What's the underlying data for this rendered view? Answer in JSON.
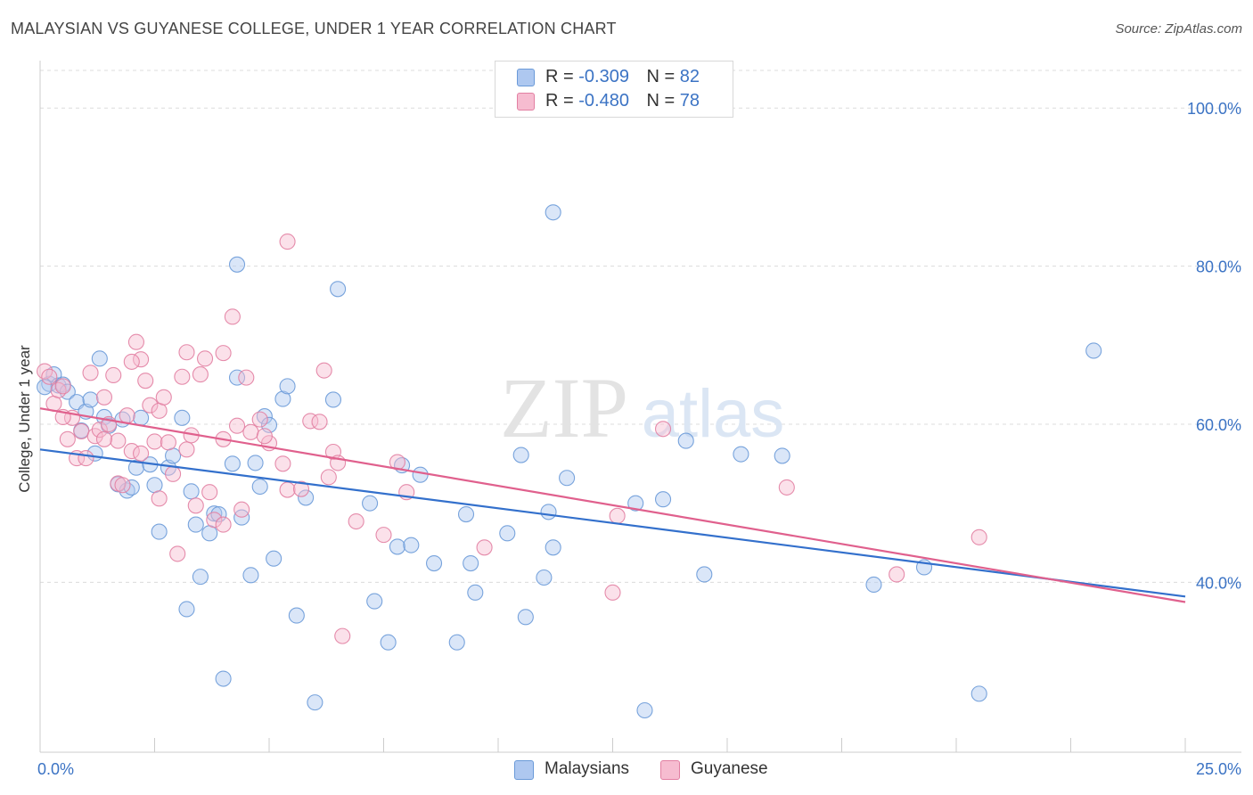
{
  "title": "MALAYSIAN VS GUYANESE COLLEGE, UNDER 1 YEAR CORRELATION CHART",
  "source": "Source: ZipAtlas.com",
  "watermark": {
    "zip": "ZIP",
    "atlas": "atlas"
  },
  "legend": {
    "r_label": "R =",
    "n_label": "N =",
    "series": [
      {
        "name": "Malaysians",
        "r": "-0.309",
        "n": "82",
        "fill": "#aec8f0",
        "stroke": "#6a9ad8"
      },
      {
        "name": "Guyanese",
        "r": "-0.480",
        "n": "78",
        "fill": "#f6bcd0",
        "stroke": "#e27fa2"
      }
    ]
  },
  "chart_data": {
    "type": "scatter",
    "title": "MALAYSIAN VS GUYANESE COLLEGE, UNDER 1 YEAR CORRELATION CHART",
    "xlabel": "",
    "ylabel": "College, Under 1 year",
    "xlim": [
      0,
      25
    ],
    "ylim": [
      18.5,
      106
    ],
    "x_tick_labels": [
      "0.0%",
      "25.0%"
    ],
    "y_ticks": [
      40,
      60,
      80,
      100
    ],
    "y_tick_labels": [
      "40.0%",
      "60.0%",
      "80.0%",
      "100.0%"
    ],
    "grid": true,
    "series": [
      {
        "name": "Malaysians",
        "color": "#6a9ad8",
        "fill": "#aec8f0",
        "trend": {
          "x": [
            0,
            25
          ],
          "y": [
            56.8,
            38.2
          ],
          "color": "#3370cc"
        },
        "points": [
          [
            0.2,
            65.1
          ],
          [
            0.3,
            66.3
          ],
          [
            0.4,
            64.9
          ],
          [
            0.5,
            65.0
          ],
          [
            0.6,
            64.1
          ],
          [
            0.8,
            62.8
          ],
          [
            0.9,
            59.2
          ],
          [
            1.0,
            61.6
          ],
          [
            1.1,
            63.1
          ],
          [
            1.2,
            56.3
          ],
          [
            1.3,
            68.3
          ],
          [
            1.4,
            60.9
          ],
          [
            1.5,
            59.8
          ],
          [
            1.7,
            52.4
          ],
          [
            1.8,
            60.6
          ],
          [
            1.9,
            51.6
          ],
          [
            2.0,
            52.0
          ],
          [
            2.1,
            54.5
          ],
          [
            2.2,
            60.8
          ],
          [
            2.4,
            54.9
          ],
          [
            2.5,
            52.3
          ],
          [
            2.6,
            46.4
          ],
          [
            2.8,
            54.5
          ],
          [
            2.9,
            56.0
          ],
          [
            3.1,
            60.8
          ],
          [
            3.2,
            36.6
          ],
          [
            3.3,
            51.5
          ],
          [
            3.4,
            47.3
          ],
          [
            3.5,
            40.7
          ],
          [
            3.7,
            46.2
          ],
          [
            3.8,
            48.7
          ],
          [
            3.9,
            48.6
          ],
          [
            4.0,
            27.8
          ],
          [
            4.2,
            55.0
          ],
          [
            4.3,
            80.2
          ],
          [
            4.3,
            65.9
          ],
          [
            4.4,
            48.2
          ],
          [
            4.6,
            40.9
          ],
          [
            4.7,
            55.1
          ],
          [
            4.8,
            52.1
          ],
          [
            4.9,
            61.0
          ],
          [
            5.0,
            59.9
          ],
          [
            5.1,
            43.0
          ],
          [
            5.3,
            63.2
          ],
          [
            5.4,
            64.8
          ],
          [
            5.6,
            35.8
          ],
          [
            5.8,
            50.7
          ],
          [
            6.0,
            24.8
          ],
          [
            6.4,
            63.1
          ],
          [
            6.5,
            77.1
          ],
          [
            7.2,
            50.0
          ],
          [
            7.3,
            37.6
          ],
          [
            7.6,
            32.4
          ],
          [
            7.8,
            44.5
          ],
          [
            7.9,
            54.8
          ],
          [
            8.1,
            44.7
          ],
          [
            8.3,
            53.6
          ],
          [
            8.6,
            42.4
          ],
          [
            9.1,
            32.4
          ],
          [
            9.4,
            42.4
          ],
          [
            9.3,
            48.6
          ],
          [
            9.5,
            38.7
          ],
          [
            10.2,
            46.2
          ],
          [
            10.5,
            56.1
          ],
          [
            10.6,
            35.6
          ],
          [
            11.0,
            40.6
          ],
          [
            11.1,
            48.9
          ],
          [
            11.2,
            44.4
          ],
          [
            11.2,
            86.8
          ],
          [
            11.5,
            53.2
          ],
          [
            13.0,
            50.0
          ],
          [
            13.2,
            23.8
          ],
          [
            13.6,
            50.5
          ],
          [
            14.1,
            57.9
          ],
          [
            14.5,
            41.0
          ],
          [
            15.3,
            56.2
          ],
          [
            16.2,
            56.0
          ],
          [
            18.2,
            39.7
          ],
          [
            19.3,
            41.9
          ],
          [
            20.5,
            25.9
          ],
          [
            23.0,
            69.3
          ],
          [
            0.1,
            64.7
          ]
        ]
      },
      {
        "name": "Guyanese",
        "color": "#e27fa2",
        "fill": "#f6bcd0",
        "trend": {
          "x": [
            0,
            25
          ],
          "y": [
            62.0,
            37.5
          ],
          "color": "#e0608d"
        },
        "points": [
          [
            0.1,
            66.7
          ],
          [
            0.2,
            66.0
          ],
          [
            0.3,
            62.6
          ],
          [
            0.4,
            64.3
          ],
          [
            0.5,
            64.8
          ],
          [
            0.6,
            58.1
          ],
          [
            0.7,
            60.8
          ],
          [
            0.8,
            55.7
          ],
          [
            0.9,
            59.1
          ],
          [
            1.0,
            55.7
          ],
          [
            1.1,
            66.5
          ],
          [
            1.2,
            58.5
          ],
          [
            1.3,
            59.3
          ],
          [
            1.4,
            63.4
          ],
          [
            1.5,
            60.0
          ],
          [
            1.6,
            66.2
          ],
          [
            1.7,
            57.9
          ],
          [
            1.7,
            52.5
          ],
          [
            1.8,
            52.3
          ],
          [
            1.9,
            61.1
          ],
          [
            2.0,
            56.6
          ],
          [
            2.1,
            70.4
          ],
          [
            2.2,
            68.2
          ],
          [
            2.2,
            56.3
          ],
          [
            2.3,
            65.5
          ],
          [
            2.4,
            62.4
          ],
          [
            2.5,
            57.8
          ],
          [
            2.6,
            50.6
          ],
          [
            2.6,
            61.7
          ],
          [
            2.7,
            63.4
          ],
          [
            2.8,
            57.7
          ],
          [
            2.9,
            53.7
          ],
          [
            3.0,
            43.6
          ],
          [
            3.1,
            66.0
          ],
          [
            3.2,
            56.8
          ],
          [
            3.2,
            69.1
          ],
          [
            3.3,
            58.6
          ],
          [
            3.4,
            49.7
          ],
          [
            3.5,
            66.3
          ],
          [
            3.6,
            68.3
          ],
          [
            3.8,
            47.9
          ],
          [
            4.0,
            58.1
          ],
          [
            4.0,
            47.3
          ],
          [
            4.2,
            73.6
          ],
          [
            4.3,
            59.8
          ],
          [
            4.4,
            49.2
          ],
          [
            4.5,
            65.9
          ],
          [
            4.6,
            59.0
          ],
          [
            4.8,
            60.6
          ],
          [
            5.0,
            57.6
          ],
          [
            5.3,
            55.0
          ],
          [
            5.4,
            51.7
          ],
          [
            5.4,
            83.1
          ],
          [
            5.7,
            51.8
          ],
          [
            5.9,
            60.4
          ],
          [
            6.1,
            60.3
          ],
          [
            6.2,
            66.8
          ],
          [
            6.4,
            56.5
          ],
          [
            6.5,
            55.1
          ],
          [
            6.6,
            33.2
          ],
          [
            6.9,
            47.7
          ],
          [
            7.5,
            46.0
          ],
          [
            7.8,
            55.2
          ],
          [
            8.0,
            51.4
          ],
          [
            9.7,
            44.4
          ],
          [
            12.5,
            38.7
          ],
          [
            12.6,
            48.4
          ],
          [
            13.6,
            59.4
          ],
          [
            16.3,
            52.0
          ],
          [
            18.7,
            41.0
          ],
          [
            20.5,
            45.7
          ],
          [
            4.0,
            69.0
          ],
          [
            0.5,
            60.9
          ],
          [
            1.4,
            58.1
          ],
          [
            2.0,
            67.9
          ],
          [
            3.7,
            51.4
          ],
          [
            4.9,
            58.5
          ],
          [
            6.3,
            53.3
          ]
        ]
      }
    ]
  }
}
